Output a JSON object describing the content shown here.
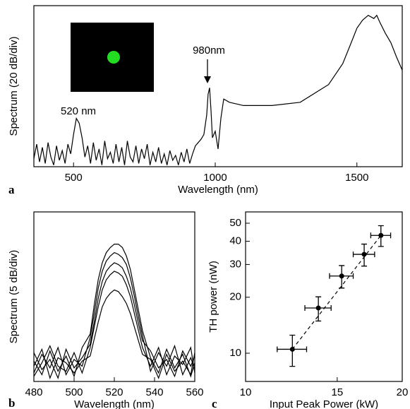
{
  "chart_data": [
    {
      "type": "line",
      "panel_label": "a",
      "xlabel": "Wavelength (nm)",
      "ylabel": "Spectrum (20 dB/div)",
      "color": "#000000",
      "x": [
        360,
        370,
        380,
        390,
        400,
        410,
        420,
        430,
        440,
        450,
        460,
        470,
        480,
        490,
        500,
        510,
        520,
        530,
        540,
        550,
        560,
        570,
        580,
        590,
        600,
        610,
        620,
        630,
        640,
        650,
        660,
        670,
        680,
        690,
        700,
        710,
        720,
        730,
        740,
        750,
        760,
        770,
        780,
        790,
        800,
        810,
        820,
        830,
        840,
        850,
        860,
        870,
        880,
        890,
        900,
        910,
        920,
        930,
        940,
        950,
        960,
        970,
        975,
        980,
        985,
        990,
        1000,
        1010,
        1020,
        1030,
        1050,
        1100,
        1200,
        1300,
        1400,
        1450,
        1480,
        1500,
        1520,
        1540,
        1560,
        1570,
        1580,
        1600,
        1620,
        1640,
        1660
      ],
      "values": [
        5,
        14,
        3,
        12,
        2,
        15,
        6,
        1,
        13,
        4,
        10,
        2,
        14,
        8,
        20,
        30,
        27,
        18,
        6,
        13,
        2,
        15,
        4,
        11,
        1,
        16,
        5,
        9,
        2,
        14,
        3,
        12,
        1,
        16,
        6,
        3,
        13,
        2,
        11,
        5,
        14,
        1,
        9,
        3,
        12,
        2,
        8,
        1,
        10,
        4,
        7,
        1,
        9,
        3,
        11,
        2,
        8,
        13,
        15,
        17,
        20,
        32,
        45,
        49,
        35,
        18,
        22,
        11,
        30,
        42,
        40,
        38,
        38,
        40,
        51,
        64,
        77,
        86,
        91,
        94,
        92,
        94,
        90,
        83,
        77,
        68,
        60
      ],
      "xlim": [
        360,
        1660
      ],
      "ylim": [
        0,
        100
      ],
      "xticks": [
        500,
        1000,
        1500
      ],
      "annotations": [
        "980nm",
        "520 nm"
      ]
    },
    {
      "type": "line",
      "panel_label": "b",
      "xlabel": "Wavelength (nm)",
      "ylabel": "Spectrum (5 dB/div)",
      "color": "#000000",
      "x": [
        480,
        484,
        488,
        492,
        496,
        500,
        504,
        508,
        510,
        512,
        514,
        516,
        518,
        520,
        522,
        524,
        526,
        528,
        530,
        532,
        534,
        538,
        542,
        546,
        550,
        554,
        558,
        560
      ],
      "series": [
        {
          "values": [
            12,
            4,
            18,
            6,
            15,
            3,
            20,
            28,
            45,
            60,
            70,
            76,
            79,
            81,
            81,
            79,
            74,
            66,
            54,
            42,
            30,
            14,
            5,
            19,
            8,
            16,
            3,
            11
          ]
        },
        {
          "values": [
            5,
            16,
            8,
            20,
            4,
            13,
            9,
            26,
            40,
            55,
            65,
            71,
            74,
            76,
            75,
            73,
            69,
            61,
            50,
            38,
            27,
            6,
            17,
            9,
            21,
            4,
            14,
            7
          ]
        },
        {
          "values": [
            17,
            7,
            13,
            2,
            19,
            8,
            14,
            22,
            35,
            49,
            59,
            65,
            68,
            70,
            69,
            67,
            62,
            55,
            45,
            34,
            24,
            18,
            8,
            13,
            3,
            18,
            9,
            15
          ]
        },
        {
          "values": [
            3,
            11,
            21,
            9,
            6,
            17,
            5,
            20,
            32,
            44,
            54,
            60,
            63,
            65,
            64,
            62,
            57,
            50,
            40,
            30,
            20,
            9,
            20,
            4,
            15,
            10,
            20,
            5
          ]
        },
        {
          "values": [
            9,
            19,
            2,
            14,
            11,
            5,
            12,
            15,
            25,
            35,
            44,
            49,
            52,
            54,
            53,
            50,
            46,
            40,
            32,
            24,
            16,
            13,
            2,
            16,
            6,
            12,
            4,
            17
          ]
        }
      ],
      "xlim": [
        480,
        560
      ],
      "ylim": [
        0,
        100
      ],
      "xticks": [
        480,
        500,
        520,
        540,
        560
      ]
    },
    {
      "type": "scatter",
      "panel_label": "c",
      "xlabel": "Input Peak Power (kW)",
      "ylabel": "TH power (nW)",
      "color": "#000000",
      "xscale": "log",
      "yscale": "log",
      "x": [
        12.3,
        13.8,
        15.3,
        16.9,
        18.2
      ],
      "xerr": [
        0.8,
        0.8,
        0.8,
        0.8,
        0.8
      ],
      "y": [
        10.5,
        17.5,
        26,
        34,
        43
      ],
      "yerr": [
        2,
        2.6,
        3.6,
        4.6,
        5.5
      ],
      "fit": {
        "x": [
          12.3,
          18.2
        ],
        "y": [
          10.5,
          43
        ]
      },
      "xlim": [
        10,
        20
      ],
      "ylim": [
        7.05,
        57.5
      ],
      "xticks": [
        10,
        15,
        20
      ],
      "yticks": [
        10,
        20,
        30,
        40,
        50
      ]
    }
  ]
}
